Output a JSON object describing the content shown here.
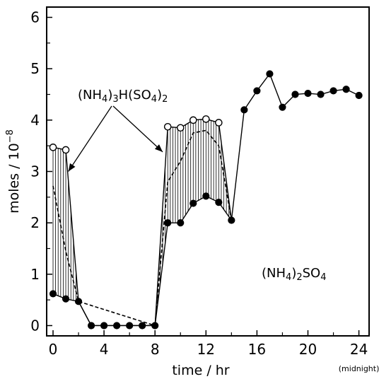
{
  "chart_data": {
    "type": "line",
    "xlabel": "time / hr",
    "ylabel": "moles / 10",
    "ylabel_exponent": "−8",
    "xlim": [
      -0.5,
      24.8
    ],
    "ylim": [
      -0.2,
      6.2
    ],
    "xticks": [
      0,
      4,
      8,
      12,
      16,
      20,
      24
    ],
    "xtick_labels": [
      "0",
      "4",
      "8",
      "12",
      "16",
      "20",
      "24"
    ],
    "yticks": [
      0,
      1,
      2,
      3,
      4,
      5,
      6
    ],
    "ytick_labels": [
      "0",
      "1",
      "2",
      "3",
      "4",
      "5",
      "6"
    ],
    "x_note": "(midnight)",
    "annotations": {
      "acid_salt": {
        "p1": "(NH",
        "s1": "4",
        "p2": ")",
        "s2": "3",
        "p3": "H(SO",
        "s3": "4",
        "p4": ")",
        "s4": "2"
      },
      "sulfate": {
        "p1": "(NH",
        "s1": "4",
        "p2": ")",
        "s2": "2",
        "p3": "SO",
        "s3": "4"
      }
    },
    "series": [
      {
        "marker": "filled-circle",
        "x": [
          0,
          1,
          2,
          3,
          4,
          5,
          6,
          7,
          8,
          9,
          10,
          11,
          12,
          13,
          14,
          15,
          16,
          17,
          18,
          19,
          20,
          21,
          22,
          23,
          24
        ],
        "y": [
          0.62,
          0.52,
          0.47,
          0,
          0,
          0,
          0,
          0,
          0,
          2.0,
          2.0,
          2.38,
          2.52,
          2.4,
          2.05,
          4.2,
          4.57,
          4.9,
          4.25,
          4.5,
          4.52,
          4.5,
          4.57,
          4.6,
          4.48
        ]
      },
      {
        "marker": "open-circle",
        "x": [
          0,
          1,
          2,
          3,
          4,
          5,
          6,
          7,
          8,
          9,
          10,
          11,
          12,
          13,
          14
        ],
        "y": [
          3.47,
          3.42,
          0.47,
          0,
          0,
          0,
          0,
          0,
          0,
          3.87,
          3.85,
          4.0,
          4.02,
          3.95,
          2.05
        ]
      },
      {
        "line_style": "dashed",
        "x": [
          0,
          1,
          2,
          8,
          9,
          10,
          11,
          12,
          13,
          14
        ],
        "y": [
          2.72,
          1.45,
          0.47,
          0,
          2.8,
          3.2,
          3.75,
          3.8,
          3.5,
          2.05
        ]
      }
    ],
    "shaded_ranges": [
      [
        0,
        2
      ],
      [
        8,
        14
      ]
    ]
  }
}
